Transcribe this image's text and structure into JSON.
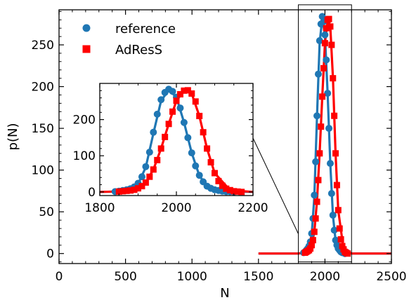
{
  "chart_data": {
    "type": "scatter",
    "xlabel": "N",
    "ylabel": "p(N)",
    "xlim": [
      0,
      2500
    ],
    "ylim": [
      -12,
      292
    ],
    "xticks": [
      "0",
      "500",
      "1000",
      "1500",
      "2000",
      "2500"
    ],
    "yticks": [
      "0",
      "50",
      "100",
      "150",
      "200",
      "250"
    ],
    "legend_position": "top-left",
    "series": [
      {
        "name": "reference",
        "color": "#1f77b4",
        "marker": "circle",
        "x": [
          1840,
          1850,
          1860,
          1870,
          1880,
          1890,
          1900,
          1910,
          1920,
          1930,
          1940,
          1950,
          1960,
          1970,
          1980,
          1990,
          2000,
          2010,
          2020,
          2030,
          2040,
          2050,
          2060,
          2070,
          2080,
          2090,
          2100,
          2110,
          2120,
          2130,
          2140,
          2150
        ],
        "y": [
          1,
          2,
          4,
          6,
          9,
          14,
          24,
          42,
          70,
          110,
          165,
          215,
          255,
          275,
          284,
          278,
          262,
          232,
          192,
          150,
          108,
          72,
          46,
          28,
          16,
          10,
          6,
          4,
          2,
          1,
          1,
          0
        ]
      },
      {
        "name": "AdResS",
        "color": "#ff0000",
        "marker": "square",
        "x": [
          1850,
          1860,
          1870,
          1880,
          1890,
          1900,
          1910,
          1920,
          1930,
          1940,
          1950,
          1960,
          1970,
          1980,
          1990,
          2000,
          2010,
          2020,
          2030,
          2040,
          2050,
          2060,
          2070,
          2080,
          2090,
          2100,
          2110,
          2120,
          2130,
          2140,
          2150,
          2160,
          2170
        ],
        "y": [
          1,
          2,
          3,
          4,
          6,
          10,
          16,
          26,
          42,
          62,
          88,
          120,
          152,
          188,
          222,
          252,
          270,
          280,
          281,
          272,
          250,
          210,
          165,
          120,
          82,
          52,
          30,
          17,
          9,
          5,
          2,
          1,
          0
        ]
      }
    ],
    "lines": [
      {
        "series": "reference",
        "color": "#1f77b4",
        "x": [
          1500,
          1800,
          1840,
          1880,
          1900,
          1920,
          1940,
          1960,
          1980,
          2000,
          2020,
          2040,
          2060,
          2080,
          2100,
          2140,
          2200,
          2500
        ],
        "y": [
          0,
          0,
          1,
          8,
          22,
          68,
          162,
          252,
          282,
          262,
          192,
          108,
          45,
          16,
          6,
          1,
          0,
          0
        ]
      },
      {
        "series": "AdResS",
        "color": "#ff0000",
        "x": [
          1500,
          1800,
          1840,
          1880,
          1900,
          1920,
          1940,
          1960,
          1980,
          2000,
          2020,
          2040,
          2060,
          2080,
          2100,
          2140,
          2200,
          2500
        ],
        "y": [
          0,
          0,
          1,
          4,
          10,
          26,
          62,
          120,
          188,
          252,
          280,
          272,
          210,
          120,
          52,
          5,
          0,
          0
        ]
      }
    ],
    "inset": {
      "xlim": [
        1800,
        2200
      ],
      "ylim": [
        -10,
        300
      ],
      "xticks": [
        "1800",
        "2000",
        "2200"
      ],
      "yticks": [
        "0",
        "100",
        "200"
      ],
      "zoom_box_xlim": [
        1800,
        2200
      ],
      "zoom_box_ylim": [
        -10,
        298
      ]
    }
  },
  "legend": {
    "reference_label": "reference",
    "adress_label": "AdResS"
  }
}
